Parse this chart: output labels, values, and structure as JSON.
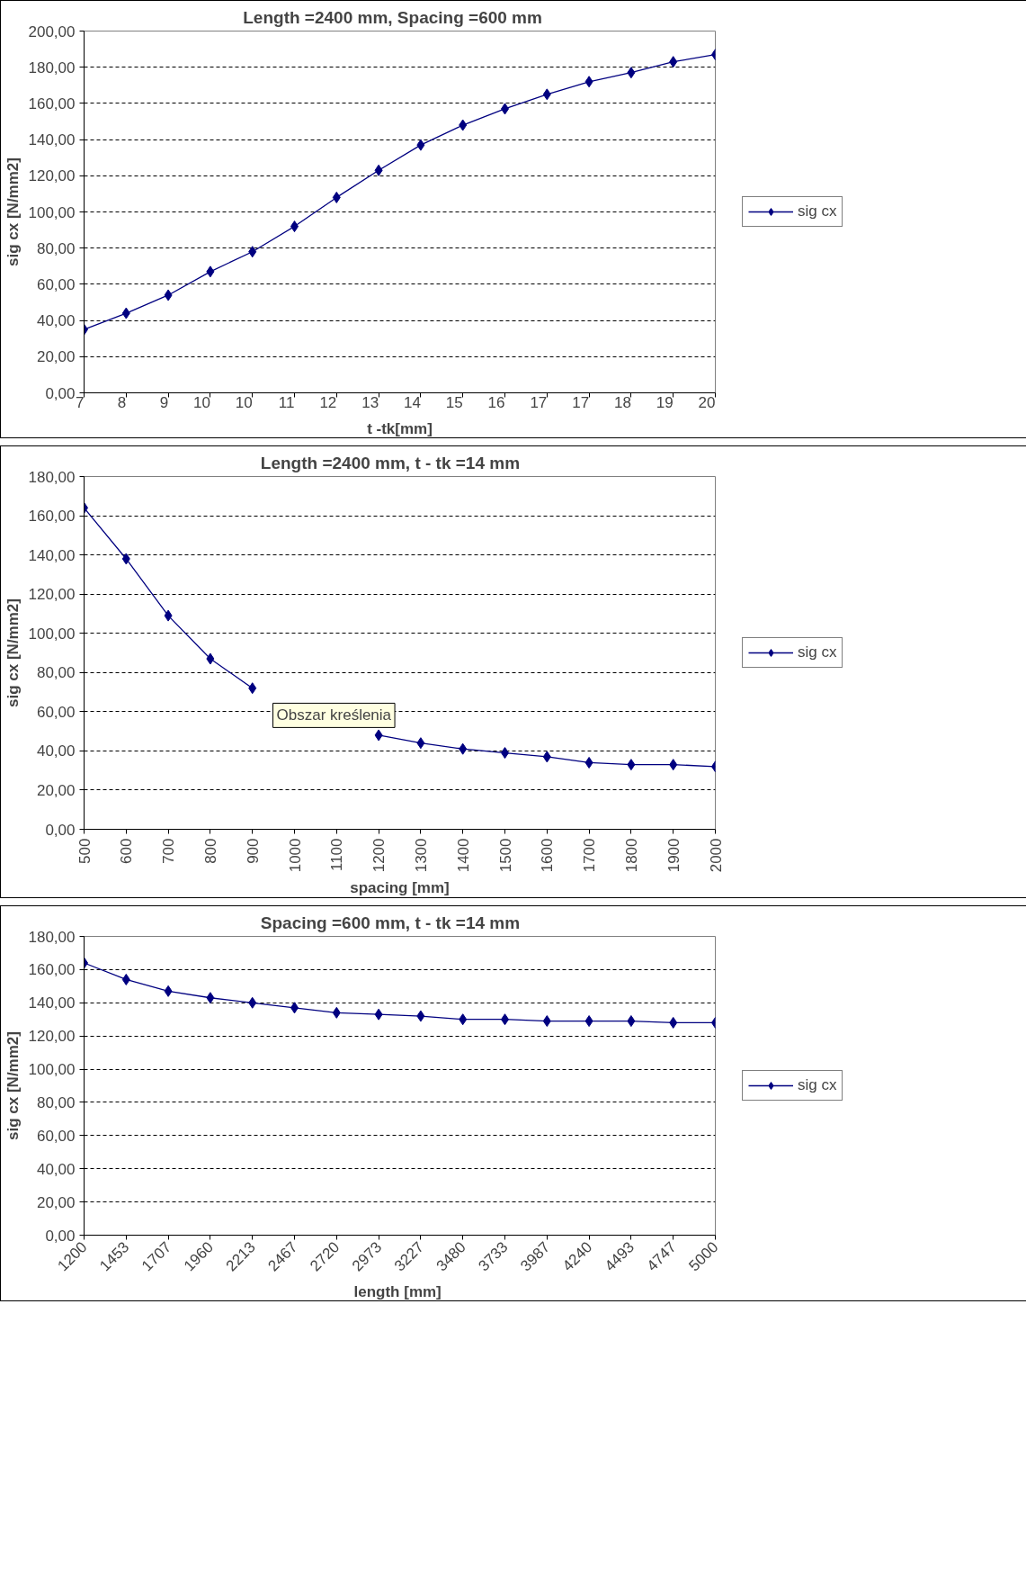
{
  "chart_data": [
    {
      "type": "line",
      "title": "Length =2400 mm,    Spacing =600 mm",
      "xlabel": "t -tk[mm]",
      "ylabel": "sig cx [N/mm2]",
      "categories": [
        "7",
        "8",
        "9",
        "10",
        "10",
        "11",
        "12",
        "13",
        "14",
        "15",
        "16",
        "17",
        "17",
        "18",
        "19",
        "20"
      ],
      "series": [
        {
          "name": "sig cx",
          "color": "#000080",
          "values": [
            35,
            44,
            54,
            67,
            78,
            92,
            108,
            123,
            137,
            148,
            157,
            165,
            172,
            177,
            183,
            187
          ]
        }
      ],
      "ylim": [
        0,
        200
      ],
      "yticks": [
        {
          "value": 0,
          "label": "0,00"
        },
        {
          "value": 20,
          "label": "20,00"
        },
        {
          "value": 40,
          "label": "40,00"
        },
        {
          "value": 60,
          "label": "60,00"
        },
        {
          "value": 80,
          "label": "80,00"
        },
        {
          "value": 100,
          "label": "100,00"
        },
        {
          "value": 120,
          "label": "120,00"
        },
        {
          "value": 140,
          "label": "140,00"
        },
        {
          "value": 160,
          "label": "160,00"
        },
        {
          "value": 180,
          "label": "180,00"
        },
        {
          "value": 200,
          "label": "200,00"
        }
      ],
      "grid": "y",
      "legend": "right",
      "marker": "diamond",
      "line_style": "solid"
    },
    {
      "type": "line",
      "title": "Length =2400 mm,    t - tk  =14 mm",
      "xlabel": "spacing [mm]",
      "ylabel": "sig cx [N/mm2]",
      "categories": [
        "500",
        "600",
        "700",
        "800",
        "900",
        "1000",
        "1100",
        "1200",
        "1300",
        "1400",
        "1500",
        "1600",
        "1700",
        "1800",
        "1900",
        "2000"
      ],
      "series": [
        {
          "name": "sig cx",
          "color": "#000080",
          "values": [
            164,
            138,
            109,
            87,
            72,
            null,
            null,
            48,
            44,
            41,
            39,
            37,
            34,
            33,
            33,
            32
          ]
        }
      ],
      "ylim": [
        0,
        180
      ],
      "yticks": [
        {
          "value": 0,
          "label": "0,00"
        },
        {
          "value": 20,
          "label": "20,00"
        },
        {
          "value": 40,
          "label": "40,00"
        },
        {
          "value": 60,
          "label": "60,00"
        },
        {
          "value": 80,
          "label": "80,00"
        },
        {
          "value": 100,
          "label": "100,00"
        },
        {
          "value": 120,
          "label": "120,00"
        },
        {
          "value": 140,
          "label": "140,00"
        },
        {
          "value": 160,
          "label": "160,00"
        },
        {
          "value": 180,
          "label": "180,00"
        }
      ],
      "annotations": [
        "Obszar kreślenia"
      ],
      "grid": "y",
      "legend": "right",
      "marker": "diamond",
      "line_style": "solid"
    },
    {
      "type": "line",
      "title": "Spacing =600 mm,    t - tk  =14 mm",
      "xlabel": "length  [mm]",
      "ylabel": "sig cx [N/mm2]",
      "categories": [
        "1200",
        "1453",
        "1707",
        "1960",
        "2213",
        "2467",
        "2720",
        "2973",
        "3227",
        "3480",
        "3733",
        "3987",
        "4240",
        "4493",
        "4747",
        "5000"
      ],
      "series": [
        {
          "name": "sig cx",
          "color": "#000080",
          "values": [
            164,
            154,
            147,
            143,
            140,
            137,
            134,
            133,
            132,
            130,
            130,
            129,
            129,
            129,
            128,
            128
          ]
        }
      ],
      "ylim": [
        0,
        180
      ],
      "yticks": [
        {
          "value": 0,
          "label": "0,00"
        },
        {
          "value": 20,
          "label": "20,00"
        },
        {
          "value": 40,
          "label": "40,00"
        },
        {
          "value": 60,
          "label": "60,00"
        },
        {
          "value": 80,
          "label": "80,00"
        },
        {
          "value": 100,
          "label": "100,00"
        },
        {
          "value": 120,
          "label": "120,00"
        },
        {
          "value": 140,
          "label": "140,00"
        },
        {
          "value": 160,
          "label": "160,00"
        },
        {
          "value": 180,
          "label": "180,00"
        }
      ],
      "grid": "y",
      "legend": "right",
      "marker": "diamond",
      "line_style": "solid"
    }
  ]
}
